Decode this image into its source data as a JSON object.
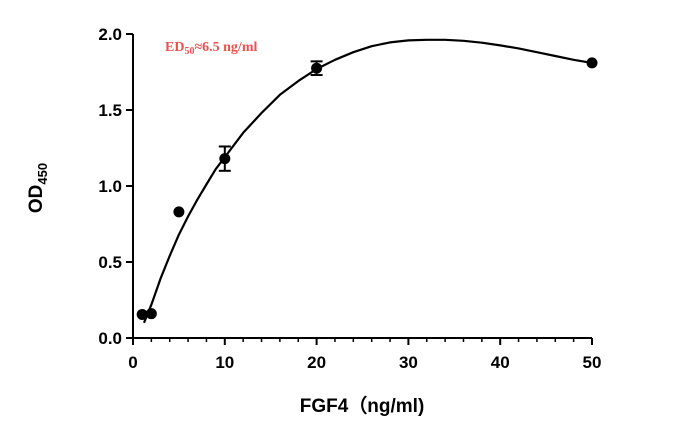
{
  "chart_data": {
    "type": "scatter",
    "title": "",
    "xlabel": "FGF4（ng/ml)",
    "ylabel": {
      "main": "OD",
      "sub": "450"
    },
    "annotation": {
      "main": "ED",
      "sub": "50",
      "rest": "≈6.5 ng/ml",
      "color": "#e8524f"
    },
    "xlim": [
      0,
      50
    ],
    "ylim": [
      0,
      2.0
    ],
    "x_ticks": [
      0,
      10,
      20,
      30,
      40,
      50
    ],
    "x_tick_labels": [
      "0",
      "10",
      "20",
      "30",
      "40",
      "50"
    ],
    "y_ticks": [
      0,
      0.5,
      1.0,
      1.5,
      2.0
    ],
    "y_tick_labels": [
      "0.0",
      "0.5",
      "1.0",
      "1.5",
      "2.0"
    ],
    "grid": false,
    "legend": "none",
    "series": [
      {
        "points": [
          {
            "x": 1,
            "y": 0.155,
            "err": 0
          },
          {
            "x": 2,
            "y": 0.16,
            "err": 0
          },
          {
            "x": 5,
            "y": 0.83,
            "err": 0
          },
          {
            "x": 10,
            "y": 1.18,
            "err": 0.08
          },
          {
            "x": 20,
            "y": 1.775,
            "err": 0.045
          },
          {
            "x": 50,
            "y": 1.81,
            "err": 0
          }
        ]
      }
    ],
    "fit_curve": [
      [
        1.2,
        0.1
      ],
      [
        2,
        0.22
      ],
      [
        3,
        0.39
      ],
      [
        4,
        0.54
      ],
      [
        5,
        0.68
      ],
      [
        6,
        0.8
      ],
      [
        7,
        0.91
      ],
      [
        8,
        1.01
      ],
      [
        9,
        1.11
      ],
      [
        10,
        1.19
      ],
      [
        12,
        1.35
      ],
      [
        14,
        1.48
      ],
      [
        16,
        1.6
      ],
      [
        18,
        1.69
      ],
      [
        20,
        1.77
      ],
      [
        22,
        1.83
      ],
      [
        24,
        1.88
      ],
      [
        26,
        1.92
      ],
      [
        28,
        1.945
      ],
      [
        30,
        1.958
      ],
      [
        32,
        1.962
      ],
      [
        34,
        1.962
      ],
      [
        36,
        1.955
      ],
      [
        38,
        1.943
      ],
      [
        40,
        1.925
      ],
      [
        42,
        1.905
      ],
      [
        44,
        1.88
      ],
      [
        46,
        1.855
      ],
      [
        48,
        1.83
      ],
      [
        50,
        1.81
      ]
    ]
  }
}
